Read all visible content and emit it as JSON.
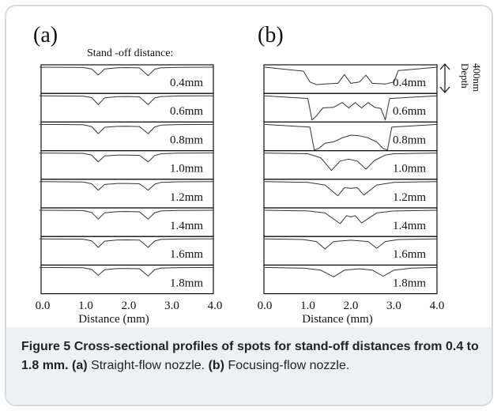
{
  "panel_a": {
    "letter": "(a)",
    "header": "Stand  -off distance:",
    "x_title": "Distance (mm)",
    "ticks": [
      "0.0",
      "1.0",
      "2.0",
      "3.0",
      "4.0"
    ]
  },
  "panel_b": {
    "letter": "(b)",
    "x_title": "Distance (mm)",
    "ticks": [
      "0.0",
      "1.0",
      "2.0",
      "3.0",
      "4.0"
    ],
    "depth_label": "Depth",
    "depth_value": "400nm"
  },
  "caption": {
    "figure_label": "Figure 5",
    "title": "Cross-sectional profiles of spots for stand-off distances from 0.4 to 1.8 mm.",
    "a_label": "(a)",
    "a_text": "Straight-flow nozzle.",
    "b_label": "(b)",
    "b_text": "Focusing-flow nozzle."
  },
  "chart_data": [
    {
      "type": "line",
      "panel": "(a)",
      "xlabel": "Distance (mm)",
      "xlim": [
        0,
        4
      ],
      "row_labels": [
        "0.4mm",
        "0.6mm",
        "0.8mm",
        "1.0mm",
        "1.2mm",
        "1.4mm",
        "1.6mm",
        "1.8mm"
      ],
      "series": [
        {
          "label": "0.4mm",
          "x": [
            0,
            1.0,
            1.2,
            1.35,
            1.5,
            1.8,
            2.0,
            2.3,
            2.5,
            2.65,
            2.8,
            3.2,
            4.0
          ],
          "depth": [
            0,
            0.02,
            0.12,
            0.55,
            0.12,
            0.04,
            0.03,
            0.05,
            0.6,
            0.14,
            0.04,
            0.01,
            0
          ]
        },
        {
          "label": "0.6mm",
          "x": [
            0,
            1.0,
            1.2,
            1.35,
            1.5,
            1.8,
            2.0,
            2.3,
            2.5,
            2.65,
            2.8,
            3.2,
            4.0
          ],
          "depth": [
            0,
            0.02,
            0.13,
            0.62,
            0.14,
            0.06,
            0.05,
            0.07,
            0.62,
            0.15,
            0.05,
            0.01,
            0
          ]
        },
        {
          "label": "0.8mm",
          "x": [
            0,
            1.0,
            1.2,
            1.35,
            1.5,
            1.8,
            2.0,
            2.3,
            2.5,
            2.65,
            2.8,
            3.2,
            4.0
          ],
          "depth": [
            0,
            0.02,
            0.15,
            0.65,
            0.2,
            0.14,
            0.13,
            0.15,
            0.65,
            0.18,
            0.05,
            0.01,
            0
          ]
        },
        {
          "label": "1.0mm",
          "x": [
            0,
            1.0,
            1.2,
            1.35,
            1.5,
            1.8,
            2.0,
            2.3,
            2.5,
            2.65,
            2.8,
            3.2,
            4.0
          ],
          "depth": [
            0,
            0.02,
            0.15,
            0.62,
            0.2,
            0.15,
            0.15,
            0.16,
            0.62,
            0.18,
            0.05,
            0.01,
            0
          ]
        },
        {
          "label": "1.2mm",
          "x": [
            0,
            1.0,
            1.2,
            1.35,
            1.5,
            1.8,
            2.0,
            2.3,
            2.5,
            2.65,
            2.8,
            3.2,
            4.0
          ],
          "depth": [
            0,
            0.02,
            0.15,
            0.6,
            0.2,
            0.13,
            0.13,
            0.15,
            0.6,
            0.18,
            0.05,
            0.01,
            0
          ]
        },
        {
          "label": "1.4mm",
          "x": [
            0,
            1.0,
            1.2,
            1.35,
            1.5,
            1.8,
            2.0,
            2.3,
            2.5,
            2.65,
            2.8,
            3.2,
            4.0
          ],
          "depth": [
            0,
            0.02,
            0.15,
            0.62,
            0.18,
            0.1,
            0.09,
            0.11,
            0.62,
            0.17,
            0.05,
            0.01,
            0
          ]
        },
        {
          "label": "1.6mm",
          "x": [
            0,
            1.0,
            1.2,
            1.35,
            1.5,
            1.8,
            2.0,
            2.3,
            2.5,
            2.65,
            2.8,
            3.2,
            4.0
          ],
          "depth": [
            0,
            0.02,
            0.14,
            0.6,
            0.16,
            0.08,
            0.07,
            0.09,
            0.6,
            0.15,
            0.04,
            0.01,
            0
          ]
        },
        {
          "label": "1.8mm",
          "x": [
            0,
            1.0,
            1.2,
            1.35,
            1.5,
            1.8,
            2.0,
            2.3,
            2.5,
            2.65,
            2.8,
            3.2,
            4.0
          ],
          "depth": [
            0,
            0.02,
            0.14,
            0.55,
            0.16,
            0.08,
            0.07,
            0.09,
            0.6,
            0.15,
            0.04,
            0.01,
            0
          ]
        }
      ]
    },
    {
      "type": "line",
      "panel": "(b)",
      "xlabel": "Distance (mm)",
      "xlim": [
        0,
        4
      ],
      "row_labels": [
        "0.4mm",
        "0.6mm",
        "0.8mm",
        "1.0mm",
        "1.2mm",
        "1.4mm",
        "1.6mm",
        "1.8mm"
      ],
      "series": [
        {
          "label": "0.4mm",
          "x": [
            0,
            0.9,
            1.05,
            1.2,
            1.4,
            1.7,
            1.85,
            2.0,
            2.2,
            2.35,
            2.5,
            2.8,
            3.0,
            3.1,
            4.0
          ],
          "depth": [
            0,
            0.3,
            1.1,
            1.3,
            1.25,
            1.2,
            0.55,
            1.2,
            1.1,
            0.6,
            1.2,
            1.25,
            1.1,
            0.25,
            0
          ]
        },
        {
          "label": "0.6mm",
          "x": [
            0,
            1.0,
            1.1,
            1.2,
            1.35,
            1.6,
            1.8,
            1.95,
            2.1,
            2.25,
            2.4,
            2.55,
            2.7,
            2.8,
            2.9,
            4.0
          ],
          "depth": [
            0,
            0.2,
            1.8,
            1.5,
            0.9,
            0.85,
            0.5,
            0.9,
            0.5,
            0.9,
            0.5,
            0.85,
            0.95,
            1.8,
            0.2,
            0
          ]
        },
        {
          "label": "0.8mm",
          "x": [
            0,
            1.05,
            1.15,
            1.25,
            1.4,
            1.6,
            1.8,
            2.0,
            2.2,
            2.4,
            2.6,
            2.75,
            2.85,
            2.95,
            4.0
          ],
          "depth": [
            0,
            0.2,
            1.9,
            1.8,
            1.4,
            1.3,
            1.0,
            0.8,
            0.85,
            1.0,
            1.3,
            1.8,
            1.9,
            0.2,
            0
          ]
        },
        {
          "label": "1.0mm",
          "x": [
            0,
            1.0,
            1.3,
            1.55,
            1.75,
            1.95,
            2.15,
            2.35,
            2.55,
            2.8,
            3.0,
            4.0
          ],
          "depth": [
            0,
            0.05,
            0.35,
            1.3,
            0.6,
            0.45,
            0.6,
            1.2,
            0.55,
            0.15,
            0.05,
            0
          ]
        },
        {
          "label": "1.2mm",
          "x": [
            0,
            1.0,
            1.4,
            1.7,
            1.85,
            2.0,
            2.15,
            2.3,
            2.6,
            3.0,
            4.0
          ],
          "depth": [
            0,
            0.05,
            0.25,
            1.05,
            0.45,
            0.5,
            0.45,
            1.0,
            0.25,
            0.05,
            0
          ]
        },
        {
          "label": "1.4mm",
          "x": [
            0,
            1.0,
            1.4,
            1.75,
            1.9,
            2.0,
            2.1,
            2.25,
            2.6,
            3.0,
            4.0
          ],
          "depth": [
            0,
            0.05,
            0.2,
            1.0,
            0.4,
            0.5,
            0.4,
            0.95,
            0.2,
            0.05,
            0
          ]
        },
        {
          "label": "1.6mm",
          "x": [
            0,
            0.9,
            1.2,
            1.4,
            1.6,
            2.0,
            2.4,
            2.6,
            2.8,
            3.1,
            4.0
          ],
          "depth": [
            0,
            0.05,
            0.2,
            0.75,
            0.2,
            0.1,
            0.2,
            0.7,
            0.2,
            0.05,
            0
          ]
        },
        {
          "label": "1.8mm",
          "x": [
            0,
            0.9,
            1.3,
            1.6,
            1.85,
            2.2,
            2.5,
            2.75,
            3.0,
            3.4,
            4.0
          ],
          "depth": [
            0,
            0.05,
            0.2,
            0.7,
            0.2,
            0.1,
            0.2,
            0.65,
            0.2,
            0.05,
            0
          ]
        }
      ]
    }
  ]
}
